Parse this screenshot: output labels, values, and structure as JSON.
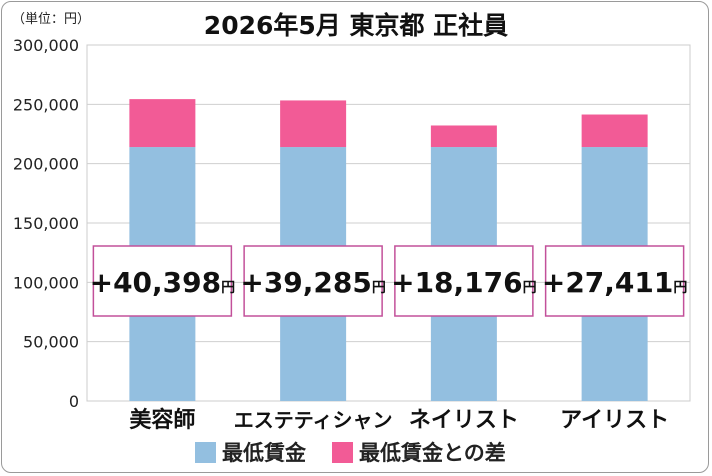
{
  "title": "2026年5月 東京都 正社員",
  "unit_label": "（単位：円）",
  "colors": {
    "base": "#93bfe0",
    "diff": "#f25b96",
    "callout_border": "#c2509a",
    "grid": "#cfcfcf"
  },
  "chart_data": {
    "type": "bar",
    "stacked": true,
    "title": "2026年5月 東京都 正社員",
    "categories": [
      "美容師",
      "エステティシャン",
      "ネイリスト",
      "アイリスト"
    ],
    "series": [
      {
        "name": "最低賃金",
        "values": [
          214000,
          214000,
          214000,
          214000
        ]
      },
      {
        "name": "最低賃金との差",
        "values": [
          40398,
          39285,
          18176,
          27411
        ]
      }
    ],
    "annotations": [
      "+40,398",
      "+39,285",
      "+18,176",
      "+27,411"
    ],
    "annotation_unit": "円",
    "ylim": [
      0,
      300000
    ],
    "yticks": [
      0,
      50000,
      100000,
      150000,
      200000,
      250000,
      300000
    ],
    "ytick_labels": [
      "0",
      "50,000",
      "100,000",
      "150,000",
      "200,000",
      "250,000",
      "300,000"
    ],
    "grid": true,
    "legend_position": "bottom"
  },
  "legend": [
    {
      "label": "最低賃金"
    },
    {
      "label": "最低賃金との差"
    }
  ]
}
